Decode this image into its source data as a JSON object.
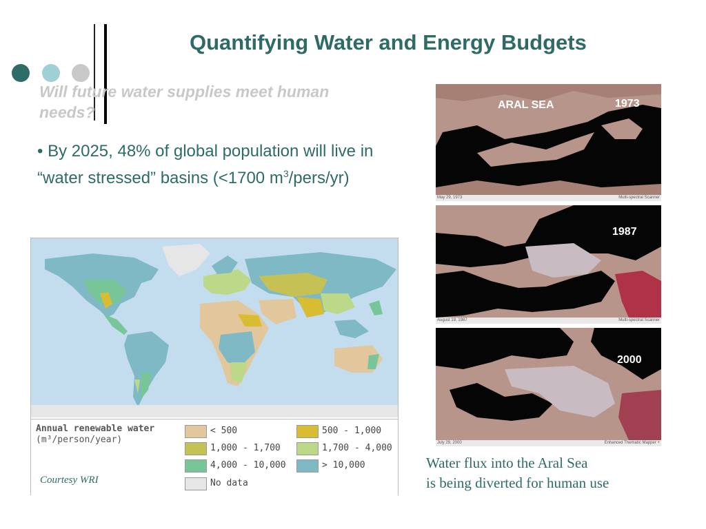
{
  "slide": {
    "title": "Quantifying Water and Energy Budgets",
    "subtitle": "Will future water supplies meet human needs?",
    "bullet": {
      "prefix": "• By 2025, 48% of global population will live in “water stressed” basins (<1700 m",
      "superscript": "3",
      "suffix": "/pers/yr)"
    },
    "decor_dots": [
      "#2f6b67",
      "#9fd0d6",
      "#c8c8c8"
    ]
  },
  "map": {
    "legend_title": "Annual renewable water",
    "legend_unit": "(m³/person/year)",
    "legend_items": [
      {
        "label": "< 500",
        "color": "#e3c79c"
      },
      {
        "label": "500 - 1,000",
        "color": "#d8bd33"
      },
      {
        "label": "1,000 - 1,700",
        "color": "#c6c154"
      },
      {
        "label": "1,700 - 4,000",
        "color": "#bcd98a"
      },
      {
        "label": "4,000 - 10,000",
        "color": "#79c59a"
      },
      {
        "label": "> 10,000",
        "color": "#7fb9c6"
      },
      {
        "label": "No data",
        "color": "#e6e6e6"
      }
    ],
    "ocean_color": "#c3ddef",
    "courtesy": "Courtesy WRI"
  },
  "satellite": {
    "label_sea": "ARAL SEA",
    "images": [
      {
        "year": "1973",
        "date": "May 29, 1973",
        "sensor": "Multi-spectral Scanner"
      },
      {
        "year": "1987",
        "date": "August 19, 1987",
        "sensor": "Multi-spectral Scanner"
      },
      {
        "year": "2000",
        "date": "July 29, 2000",
        "sensor": "Enhanced Thematic Mapper +"
      }
    ]
  },
  "caption": {
    "line1": "Water flux into the Aral Sea",
    "line2": "is being diverted for human use"
  }
}
